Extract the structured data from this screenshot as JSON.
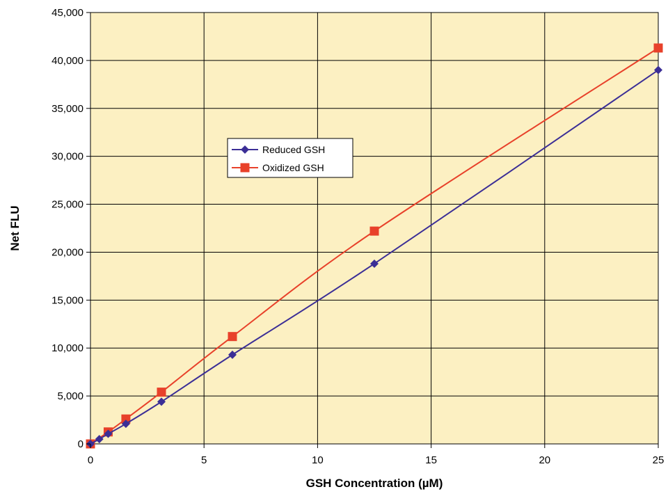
{
  "chart_data": {
    "type": "line",
    "title": "",
    "xlabel": "GSH Concentration (µM)",
    "ylabel": "Net FLU",
    "xlim": [
      0,
      25
    ],
    "ylim": [
      0,
      45000
    ],
    "x_ticks": [
      0,
      5,
      10,
      15,
      20,
      25
    ],
    "x_tick_labels": [
      "0",
      "5",
      "10",
      "15",
      "20",
      "25"
    ],
    "y_ticks": [
      0,
      5000,
      10000,
      15000,
      20000,
      25000,
      30000,
      35000,
      40000,
      45000
    ],
    "y_tick_labels": [
      "0",
      "5,000",
      "10,000",
      "15,000",
      "20,000",
      "25,000",
      "30,000",
      "35,000",
      "40,000",
      "45,000"
    ],
    "grid": true,
    "plot_background": "#FCF0C2",
    "legend_position": "center-left",
    "series": [
      {
        "name": "Reduced GSH",
        "color": "#3B2E96",
        "marker": "diamond",
        "x": [
          0,
          0.39,
          0.78,
          1.56,
          3.125,
          6.25,
          12.5,
          25
        ],
        "y": [
          0,
          500,
          1050,
          2100,
          4400,
          9300,
          18800,
          39000
        ]
      },
      {
        "name": "Oxidized GSH",
        "color": "#E8412A",
        "marker": "square",
        "x": [
          0,
          0.78,
          1.56,
          3.125,
          6.25,
          12.5,
          25
        ],
        "y": [
          0,
          1250,
          2600,
          5400,
          11200,
          22200,
          41300
        ]
      }
    ]
  }
}
